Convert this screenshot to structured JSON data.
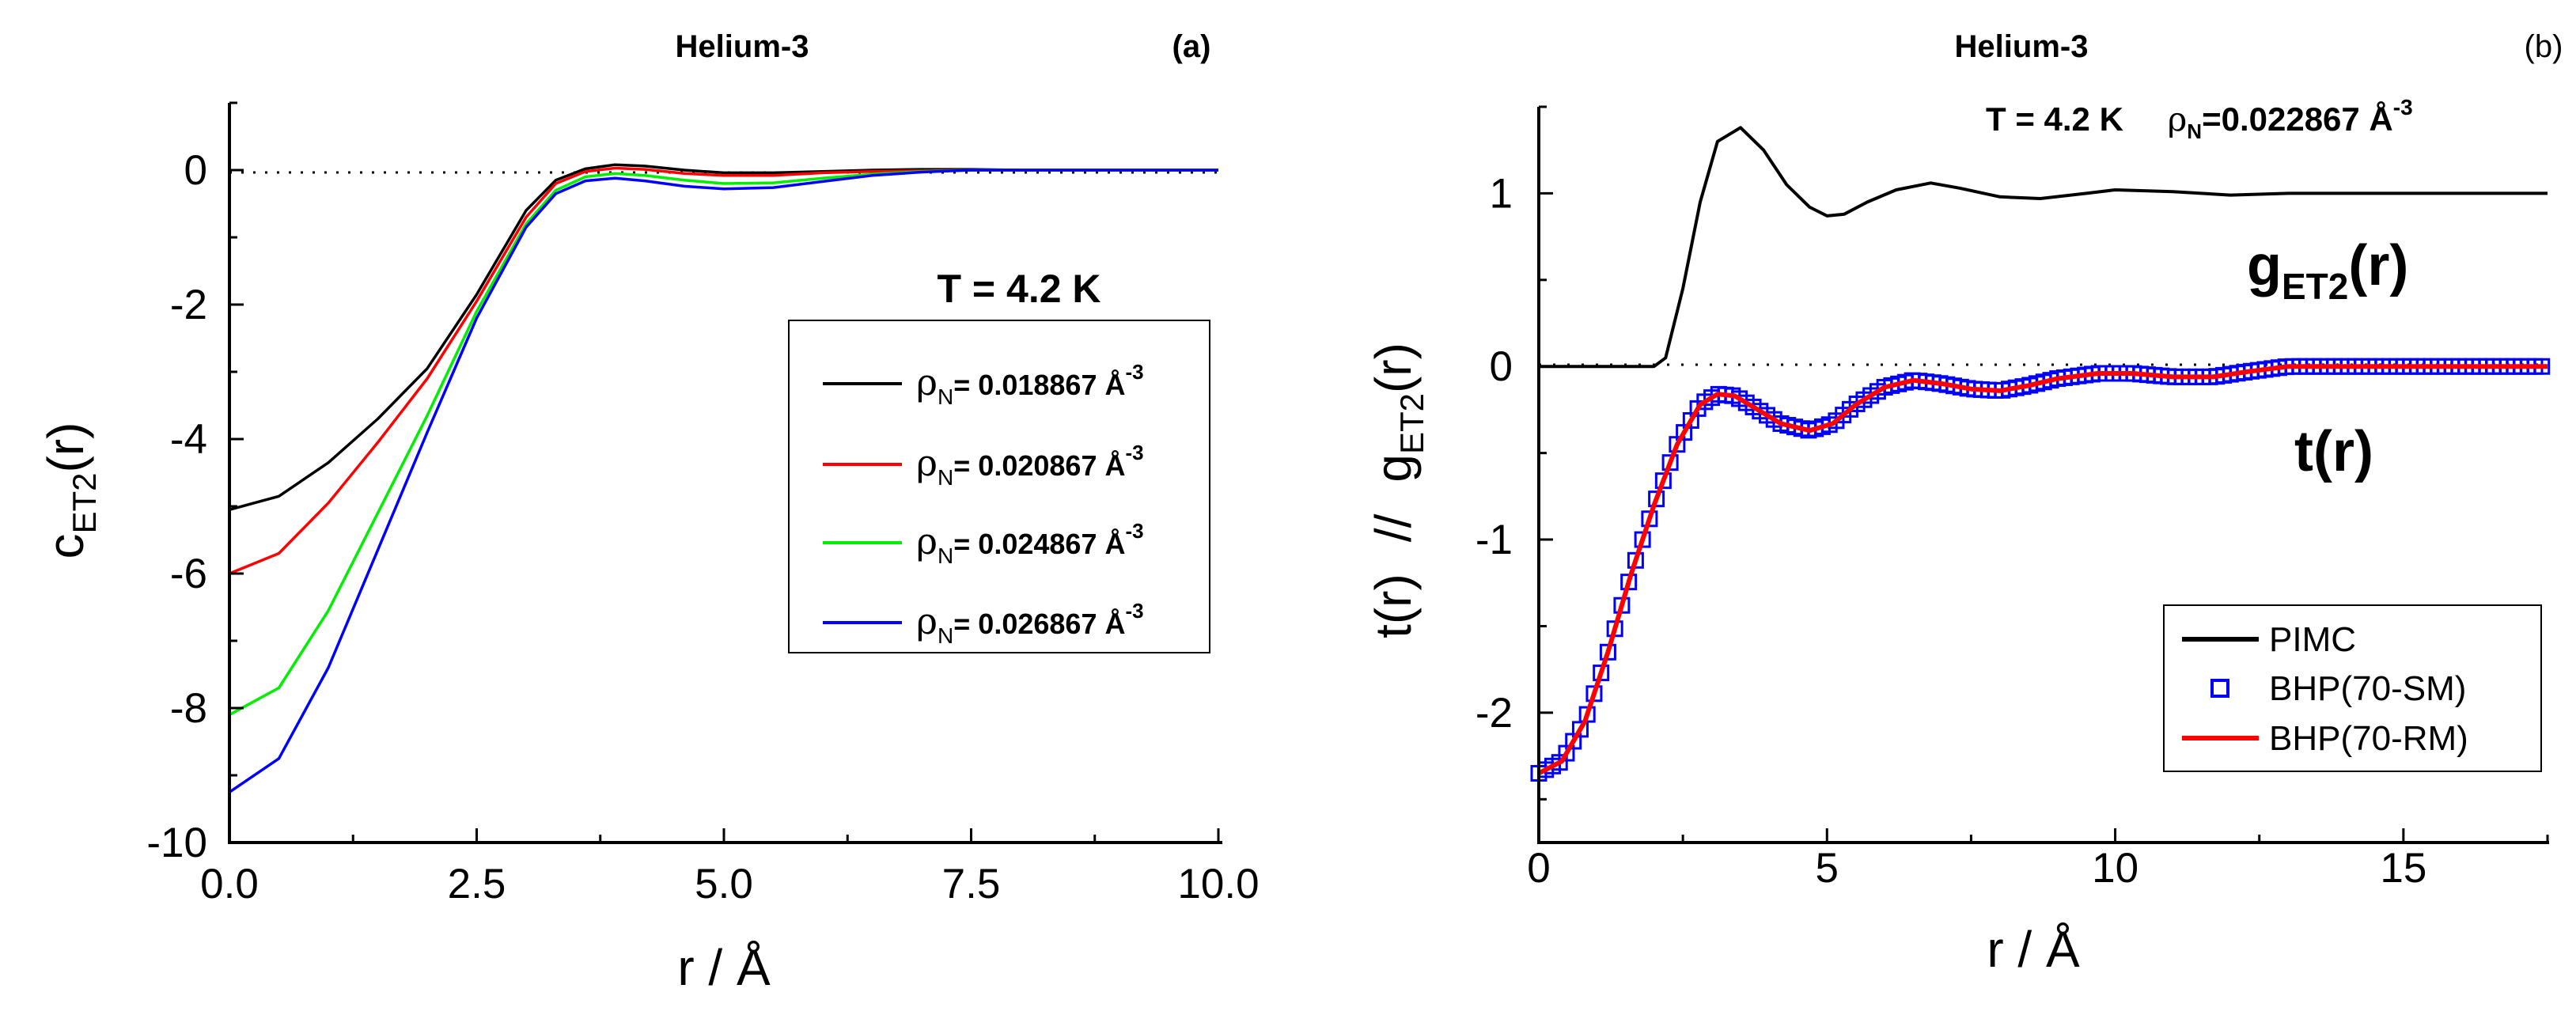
{
  "chart_data": [
    {
      "id": "a",
      "type": "line",
      "title": "Helium-3",
      "panel_label": "(a)",
      "xlabel": "r / Å",
      "ylabel_main": "c",
      "ylabel_sub": "ET2",
      "ylabel_tail": "(r)",
      "xlim": [
        0,
        10
      ],
      "ylim": [
        -10,
        1
      ],
      "x_ticks": [
        "0.0",
        "2.5",
        "5.0",
        "7.5",
        "10.0"
      ],
      "y_ticks": [
        "0",
        "-2",
        "-4",
        "-6",
        "-8",
        "-10"
      ],
      "annotation": "T = 4.2 K",
      "zero_line": "dotted",
      "legend_position": "right",
      "series": [
        {
          "name_prefix": "ρ",
          "name_sub": "N",
          "name_value": "= 0.018867 Å",
          "name_exp": "-3",
          "color": "#000000",
          "x": [
            0,
            0.5,
            1.0,
            1.5,
            2.0,
            2.5,
            3.0,
            3.3,
            3.6,
            3.9,
            4.2,
            4.6,
            5.0,
            5.5,
            6.0,
            6.5,
            7.0,
            7.5,
            8.0,
            9.0,
            10.0
          ],
          "y": [
            -5.05,
            -4.85,
            -4.35,
            -3.7,
            -2.95,
            -1.85,
            -0.6,
            -0.15,
            0.02,
            0.08,
            0.06,
            0.0,
            -0.04,
            -0.04,
            -0.02,
            0.0,
            0.01,
            0.01,
            0.0,
            0.0,
            0.0
          ]
        },
        {
          "name_prefix": "ρ",
          "name_sub": "N",
          "name_value": "= 0.020867 Å",
          "name_exp": "-3",
          "color": "#ff0000",
          "x": [
            0,
            0.5,
            1.0,
            1.5,
            2.0,
            2.5,
            3.0,
            3.3,
            3.6,
            3.9,
            4.2,
            4.6,
            5.0,
            5.5,
            6.0,
            6.5,
            7.0,
            7.5,
            8.0,
            9.0,
            10.0
          ],
          "y": [
            -6.0,
            -5.7,
            -4.95,
            -4.05,
            -3.1,
            -1.95,
            -0.7,
            -0.2,
            -0.02,
            0.03,
            0.01,
            -0.05,
            -0.08,
            -0.08,
            -0.04,
            -0.02,
            -0.01,
            0.0,
            0.0,
            0.0,
            0.0
          ]
        },
        {
          "name_prefix": "ρ",
          "name_sub": "N",
          "name_value": "= 0.024867 Å",
          "name_exp": "-3",
          "color": "#00ee00",
          "x": [
            0,
            0.5,
            1.0,
            1.5,
            2.0,
            2.5,
            3.0,
            3.3,
            3.6,
            3.9,
            4.2,
            4.6,
            5.0,
            5.5,
            6.0,
            6.5,
            7.0,
            7.5,
            8.0,
            9.0,
            10.0
          ],
          "y": [
            -8.1,
            -7.7,
            -6.55,
            -5.1,
            -3.65,
            -2.1,
            -0.8,
            -0.3,
            -0.1,
            -0.05,
            -0.08,
            -0.15,
            -0.2,
            -0.19,
            -0.12,
            -0.06,
            -0.02,
            0.0,
            0.0,
            0.0,
            0.0
          ]
        },
        {
          "name_prefix": "ρ",
          "name_sub": "N",
          "name_value": "= 0.026867 Å",
          "name_exp": "-3",
          "color": "#0000ff",
          "x": [
            0,
            0.5,
            1.0,
            1.5,
            2.0,
            2.5,
            3.0,
            3.3,
            3.6,
            3.9,
            4.2,
            4.6,
            5.0,
            5.5,
            6.0,
            6.5,
            7.0,
            7.5,
            8.0,
            9.0,
            10.0
          ],
          "y": [
            -9.25,
            -8.75,
            -7.4,
            -5.65,
            -3.9,
            -2.2,
            -0.85,
            -0.35,
            -0.16,
            -0.12,
            -0.16,
            -0.24,
            -0.28,
            -0.26,
            -0.17,
            -0.08,
            -0.03,
            0.0,
            0.0,
            0.0,
            0.0
          ]
        }
      ]
    },
    {
      "id": "b",
      "type": "line",
      "title": "Helium-3",
      "panel_label": "(b)",
      "xlabel": "r / Å",
      "ylabel_left": "t(r)",
      "ylabel_sep": "//",
      "ylabel_main": "g",
      "ylabel_sub": "ET2",
      "ylabel_tail": "(r)",
      "xlim": [
        0,
        17.5
      ],
      "ylim": [
        -2.75,
        1.5
      ],
      "x_ticks": [
        "0",
        "5",
        "10",
        "15"
      ],
      "y_ticks": [
        "1",
        "0",
        "-1",
        "-2"
      ],
      "header_T": "T = 4.2 K",
      "header_rho_prefix": "ρ",
      "header_rho_sub": "N",
      "header_rho_value": "=0.022867 Å",
      "header_rho_exp": "-3",
      "label_g_main": "g",
      "label_g_sub": "ET2",
      "label_g_tail": "(r)",
      "label_t": "t(r)",
      "zero_line": "dotted",
      "legend_position": "bottom-right",
      "series": [
        {
          "name": "PIMC",
          "color": "#000000",
          "style": "line",
          "x": [
            0,
            1.0,
            2.0,
            2.2,
            2.5,
            2.8,
            3.1,
            3.5,
            3.9,
            4.3,
            4.7,
            5.0,
            5.3,
            5.7,
            6.2,
            6.8,
            7.3,
            8.0,
            8.7,
            9.5,
            10.0,
            11.0,
            12.0,
            13.0,
            14.0,
            15.0,
            16.0,
            17.5
          ],
          "y": [
            0,
            0,
            0,
            0.05,
            0.45,
            0.95,
            1.3,
            1.38,
            1.25,
            1.05,
            0.92,
            0.87,
            0.88,
            0.95,
            1.02,
            1.06,
            1.03,
            0.98,
            0.97,
            1.0,
            1.02,
            1.01,
            0.99,
            1.0,
            1.0,
            1.0,
            1.0,
            1.0
          ]
        },
        {
          "name": "BHP(70-SM)",
          "color": "#0000ff",
          "style": "square-markers",
          "x": [
            0,
            0.4,
            0.8,
            1.2,
            1.6,
            2.0,
            2.4,
            2.8,
            3.1,
            3.4,
            3.8,
            4.2,
            4.7,
            5.1,
            5.5,
            6.0,
            6.5,
            7.0,
            7.5,
            8.0,
            8.5,
            9.0,
            9.7,
            10.3,
            11.0,
            11.7,
            12.3,
            13.0,
            14.0,
            15.0,
            16.0,
            17.0,
            17.5
          ],
          "y": [
            -2.35,
            -2.28,
            -2.05,
            -1.65,
            -1.2,
            -0.8,
            -0.45,
            -0.22,
            -0.16,
            -0.17,
            -0.25,
            -0.33,
            -0.37,
            -0.33,
            -0.22,
            -0.12,
            -0.08,
            -0.1,
            -0.13,
            -0.14,
            -0.11,
            -0.07,
            -0.04,
            -0.04,
            -0.06,
            -0.06,
            -0.03,
            0.0,
            0.0,
            0.0,
            0.0,
            0.0,
            0.0
          ]
        },
        {
          "name": "BHP(70-RM)",
          "color": "#ff0000",
          "style": "line",
          "x": [
            0,
            0.4,
            0.8,
            1.2,
            1.6,
            2.0,
            2.4,
            2.8,
            3.1,
            3.4,
            3.8,
            4.2,
            4.7,
            5.1,
            5.5,
            6.0,
            6.5,
            7.0,
            7.5,
            8.0,
            8.5,
            9.0,
            9.7,
            10.3,
            11.0,
            11.7,
            12.3,
            13.0,
            14.0,
            15.0,
            16.0,
            17.0,
            17.5
          ],
          "y": [
            -2.35,
            -2.28,
            -2.05,
            -1.65,
            -1.2,
            -0.8,
            -0.45,
            -0.22,
            -0.16,
            -0.17,
            -0.25,
            -0.33,
            -0.37,
            -0.33,
            -0.22,
            -0.12,
            -0.08,
            -0.1,
            -0.13,
            -0.14,
            -0.11,
            -0.07,
            -0.04,
            -0.04,
            -0.06,
            -0.06,
            -0.03,
            0.0,
            0.0,
            0.0,
            0.0,
            0.0,
            0.0
          ]
        }
      ]
    }
  ]
}
